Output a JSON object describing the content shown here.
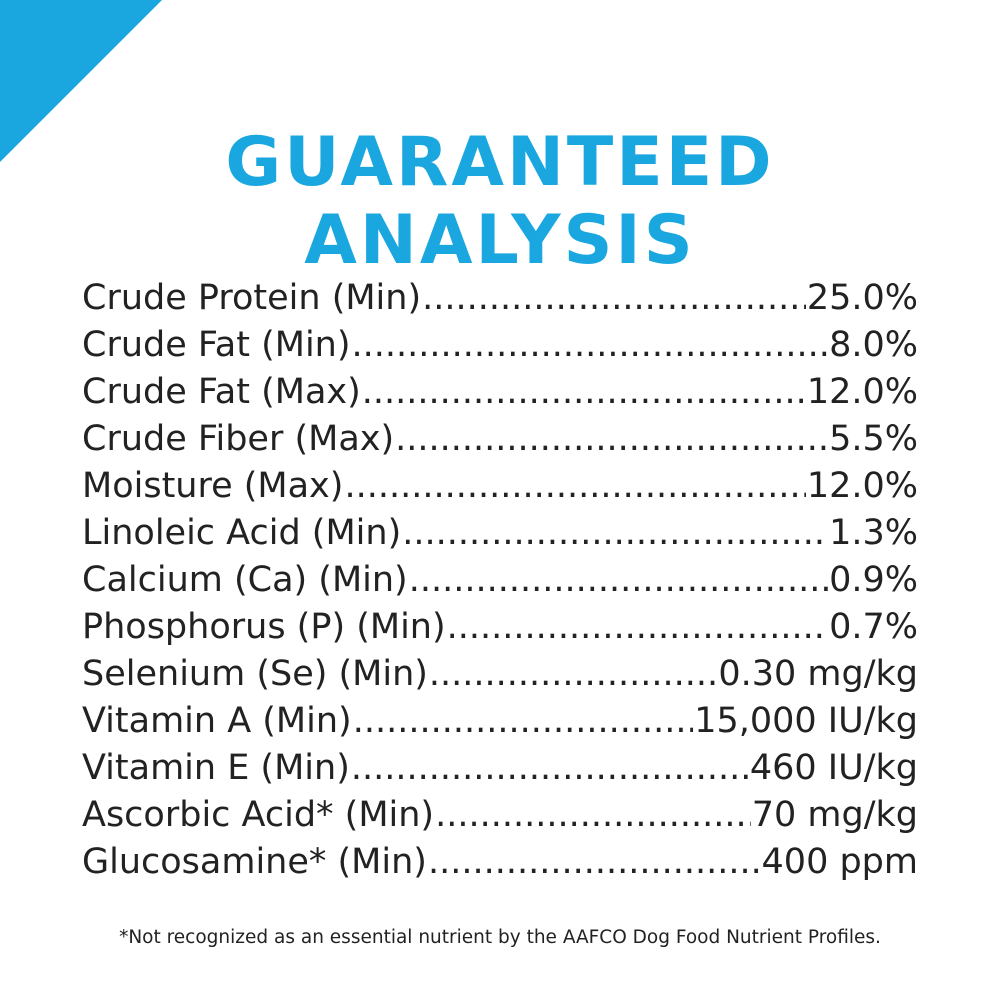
{
  "colors": {
    "accent": "#1aa7e0",
    "text": "#222222",
    "background": "#ffffff"
  },
  "title": {
    "line1": "GUARANTEED",
    "line2": "ANALYSIS"
  },
  "nutrients": [
    {
      "label": "Crude Protein (Min)",
      "value": "25.0%"
    },
    {
      "label": "Crude Fat (Min)",
      "value": "8.0%"
    },
    {
      "label": "Crude Fat (Max)",
      "value": "12.0%"
    },
    {
      "label": "Crude Fiber (Max)",
      "value": "5.5%"
    },
    {
      "label": "Moisture (Max)",
      "value": "12.0%"
    },
    {
      "label": "Linoleic Acid (Min)",
      "value": "1.3%"
    },
    {
      "label": "Calcium (Ca) (Min)",
      "value": "0.9%"
    },
    {
      "label": "Phosphorus (P) (Min)",
      "value": "0.7%"
    },
    {
      "label": "Selenium (Se) (Min)",
      "value": "0.30 mg/kg"
    },
    {
      "label": "Vitamin A (Min)",
      "value": "15,000 IU/kg"
    },
    {
      "label": "Vitamin E (Min)",
      "value": "460 IU/kg"
    },
    {
      "label": "Ascorbic Acid* (Min)",
      "value": "70 mg/kg"
    },
    {
      "label": "Glucosamine* (Min)",
      "value": "400 ppm"
    }
  ],
  "footnote": "*Not recognized as an essential nutrient by the AAFCO Dog Food Nutrient Profiles."
}
